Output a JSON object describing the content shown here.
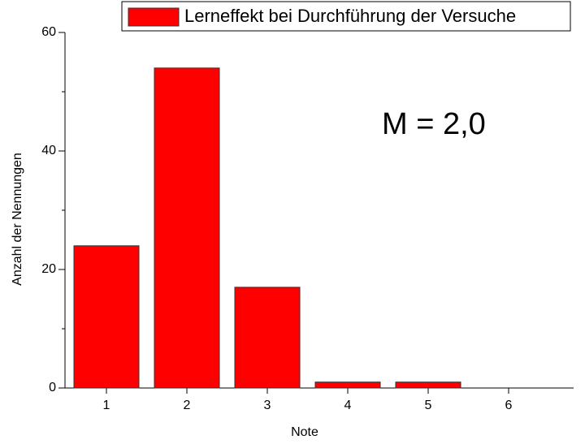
{
  "chart_data": {
    "type": "bar",
    "series": [
      {
        "name": "Lerneffekt bei Durchführung der Versuche",
        "color": "#ff0000",
        "values": [
          24,
          54,
          17,
          1,
          1,
          0
        ]
      }
    ],
    "categories": [
      "1",
      "2",
      "3",
      "4",
      "5",
      "6"
    ],
    "xlabel": "Note",
    "ylabel": "Anzahl der Nennungen",
    "annotation": "M = 2,0",
    "ylim": [
      0,
      60
    ],
    "yticks": [
      0,
      20,
      40,
      60
    ],
    "yminorticks": [
      10,
      30,
      50
    ],
    "legend": "top-right"
  }
}
